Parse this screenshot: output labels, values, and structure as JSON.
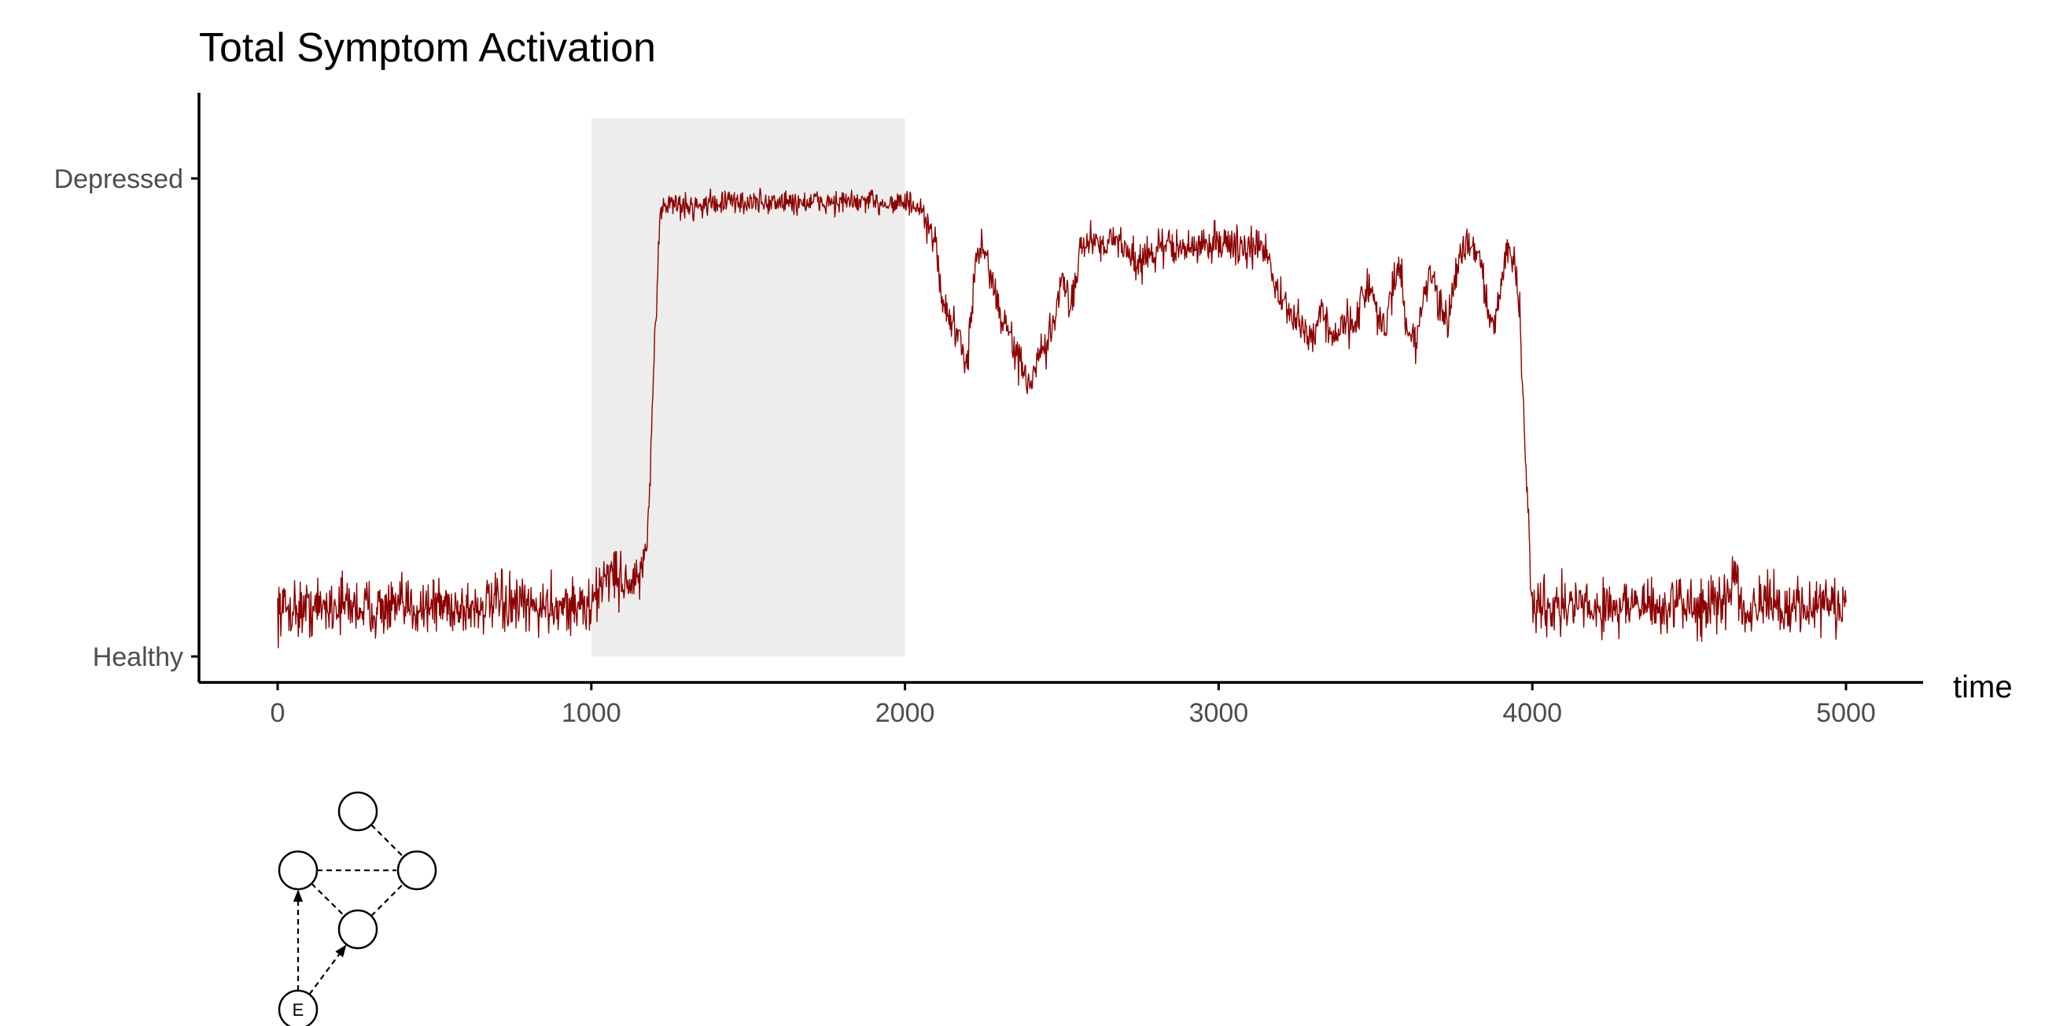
{
  "chart_data": {
    "type": "line",
    "title": "Total Symptom Activation",
    "xlabel": "time",
    "ylabel": "",
    "xlim": [
      0,
      5000
    ],
    "x_ticks": [
      0,
      1000,
      2000,
      3000,
      4000,
      5000
    ],
    "x_tick_labels": [
      "0",
      "1000",
      "2000",
      "3000",
      "4000",
      "5000"
    ],
    "y_tick_labels": [
      "Depressed",
      "Healthy"
    ],
    "ylim": [
      0,
      1
    ],
    "y_ticks": [
      1,
      0
    ],
    "shaded_region": {
      "x": [
        1000,
        2000
      ],
      "y": [
        0,
        1
      ]
    },
    "color": "#8b0000",
    "shade_color": "#ededed",
    "grid": false,
    "legend": "none",
    "series": [
      {
        "x": [
          0,
          100,
          200,
          300,
          400,
          500,
          600,
          700,
          800,
          900,
          1000,
          1050,
          1100,
          1150,
          1180,
          1200,
          1220,
          1250,
          1300,
          1400,
          1500,
          1600,
          1700,
          1800,
          1900,
          2000,
          2030,
          2060,
          2080,
          2100,
          2120,
          2150,
          2180,
          2200,
          2230,
          2250,
          2280,
          2300,
          2330,
          2360,
          2380,
          2400,
          2420,
          2450,
          2480,
          2500,
          2530,
          2560,
          2600,
          2650,
          2700,
          2750,
          2780,
          2800,
          2850,
          2900,
          2950,
          3000,
          3050,
          3100,
          3150,
          3180,
          3200,
          3250,
          3300,
          3330,
          3350,
          3380,
          3400,
          3430,
          3450,
          3480,
          3500,
          3530,
          3550,
          3580,
          3600,
          3630,
          3650,
          3680,
          3700,
          3730,
          3750,
          3780,
          3800,
          3830,
          3850,
          3880,
          3900,
          3920,
          3940,
          3960,
          3975,
          4000,
          4100,
          4200,
          4300,
          4400,
          4500,
          4600,
          4650,
          4670,
          4700,
          4800,
          4900,
          5000
        ],
        "y": [
          0.1,
          0.1,
          0.11,
          0.1,
          0.1,
          0.11,
          0.1,
          0.11,
          0.1,
          0.11,
          0.1,
          0.18,
          0.16,
          0.15,
          0.25,
          0.6,
          0.94,
          0.95,
          0.94,
          0.95,
          0.95,
          0.95,
          0.95,
          0.95,
          0.95,
          0.95,
          0.94,
          0.92,
          0.88,
          0.86,
          0.74,
          0.7,
          0.64,
          0.63,
          0.84,
          0.86,
          0.78,
          0.72,
          0.68,
          0.62,
          0.6,
          0.55,
          0.62,
          0.64,
          0.72,
          0.78,
          0.74,
          0.86,
          0.87,
          0.87,
          0.86,
          0.82,
          0.84,
          0.85,
          0.86,
          0.85,
          0.86,
          0.87,
          0.86,
          0.85,
          0.86,
          0.78,
          0.74,
          0.7,
          0.66,
          0.74,
          0.68,
          0.66,
          0.72,
          0.68,
          0.74,
          0.78,
          0.72,
          0.68,
          0.76,
          0.82,
          0.68,
          0.66,
          0.74,
          0.82,
          0.72,
          0.7,
          0.78,
          0.86,
          0.87,
          0.84,
          0.76,
          0.68,
          0.78,
          0.86,
          0.84,
          0.72,
          0.45,
          0.11,
          0.11,
          0.1,
          0.11,
          0.1,
          0.11,
          0.1,
          0.18,
          0.1,
          0.11,
          0.1,
          0.11,
          0.1
        ]
      }
    ]
  },
  "network": {
    "nodes": [
      {
        "id": "top",
        "label": "",
        "cx": 0,
        "cy": 0
      },
      {
        "id": "left",
        "label": "",
        "cx": 0,
        "cy": 0
      },
      {
        "id": "right",
        "label": "",
        "cx": 0,
        "cy": 0
      },
      {
        "id": "center",
        "label": "",
        "cx": 0,
        "cy": 0
      },
      {
        "id": "environment",
        "label": "E"
      }
    ],
    "edges": [
      {
        "from": "top",
        "to": "right",
        "arrow": false
      },
      {
        "from": "left",
        "to": "right",
        "arrow": false
      },
      {
        "from": "left",
        "to": "center",
        "arrow": false
      },
      {
        "from": "center",
        "to": "right",
        "arrow": false
      },
      {
        "from": "environment",
        "to": "left",
        "arrow": true
      },
      {
        "from": "environment",
        "to": "center",
        "arrow": true
      }
    ]
  }
}
